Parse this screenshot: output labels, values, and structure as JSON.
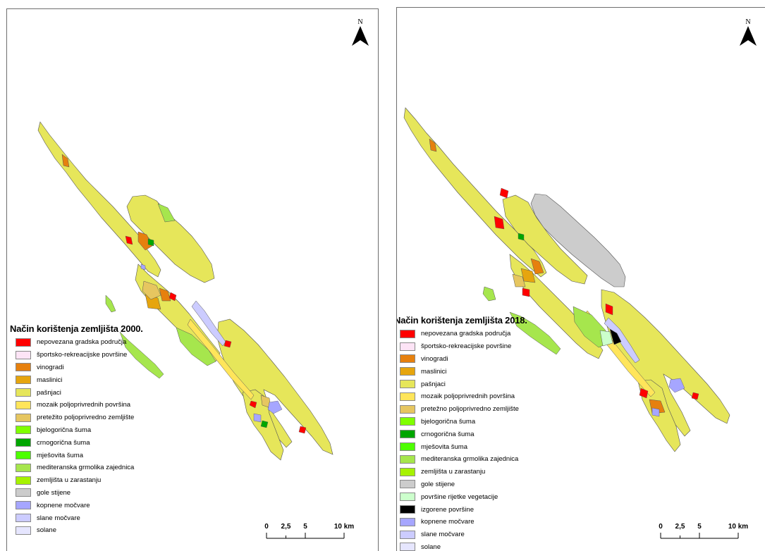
{
  "map_2000": {
    "legend_title": "Način korištenja zemljišta 2000.",
    "north_label": "N",
    "scale": {
      "labels": [
        "0",
        "2,5",
        "5",
        "10 km"
      ],
      "positions": [
        0,
        0.25,
        0.5,
        1
      ]
    },
    "legend": [
      {
        "label": "nepovezana gradska područja",
        "color": "#ff0000"
      },
      {
        "label": "športsko-rekreacijske površine",
        "color": "#fde4f6"
      },
      {
        "label": "vinogradi",
        "color": "#e6800e"
      },
      {
        "label": "maslinici",
        "color": "#e6a50e"
      },
      {
        "label": "pašnjaci",
        "color": "#e6e65a"
      },
      {
        "label": "mozaik poljoprivrednih površina",
        "color": "#ffe55a"
      },
      {
        "label": "pretežito poljoprivredno zemljište",
        "color": "#e6c660"
      },
      {
        "label": "bjelogorična šuma",
        "color": "#80ff00"
      },
      {
        "label": "crnogorična šuma",
        "color": "#00a600"
      },
      {
        "label": "mješovita šuma",
        "color": "#4dff00"
      },
      {
        "label": "mediteranska grmolika zajednica",
        "color": "#a6e64d"
      },
      {
        "label": "zemljišta u zarastanju",
        "color": "#a6f200"
      },
      {
        "label": "gole stijene",
        "color": "#cccccc"
      },
      {
        "label": "kopnene močvare",
        "color": "#a6a6ff"
      },
      {
        "label": "slane močvare",
        "color": "#ccccff"
      },
      {
        "label": "solane",
        "color": "#e6e6ff"
      }
    ]
  },
  "map_2018": {
    "legend_title": "Način korištenja zemljišta 2018.",
    "north_label": "N",
    "scale": {
      "labels": [
        "0",
        "2,5",
        "5",
        "10 km"
      ],
      "positions": [
        0,
        0.25,
        0.5,
        1
      ]
    },
    "legend": [
      {
        "label": "nepovezana gradska područja",
        "color": "#ff0000"
      },
      {
        "label": "športsko-rekreacijske površine",
        "color": "#fde4f6"
      },
      {
        "label": "vinogradi",
        "color": "#e6800e"
      },
      {
        "label": "maslinici",
        "color": "#e6a50e"
      },
      {
        "label": "pašnjaci",
        "color": "#e6e65a"
      },
      {
        "label": "mozaik poljoprivrednih površina",
        "color": "#ffe55a"
      },
      {
        "label": "pretežno poljoprivredno zemljište",
        "color": "#e6c660"
      },
      {
        "label": "bjelogorična šuma",
        "color": "#80ff00"
      },
      {
        "label": "crnogorična šuma",
        "color": "#00a600"
      },
      {
        "label": "mješovita šuma",
        "color": "#4dff00"
      },
      {
        "label": "mediteranska grmolika zajednica",
        "color": "#a6e64d"
      },
      {
        "label": "zemljišta u zarastanju",
        "color": "#a6f200"
      },
      {
        "label": "gole stijene",
        "color": "#cccccc"
      },
      {
        "label": "površine rijetke vegetacije",
        "color": "#ccffcc"
      },
      {
        "label": "izgorene površine",
        "color": "#000000"
      },
      {
        "label": "kopnene močvare",
        "color": "#a6a6ff"
      },
      {
        "label": "slane močvare",
        "color": "#ccccff"
      },
      {
        "label": "solane",
        "color": "#e6e6ff"
      }
    ]
  }
}
